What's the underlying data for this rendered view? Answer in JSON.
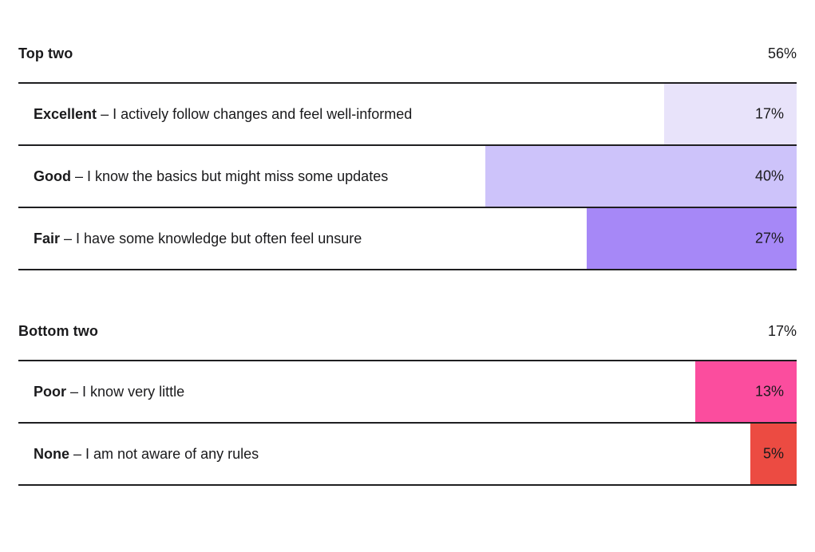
{
  "page": {
    "background": "#ffffff",
    "text_color": "#1a1a1c",
    "rule_color": "#1f1f21"
  },
  "chart_data": {
    "type": "bar",
    "orientation": "horizontal",
    "value_range": [
      0,
      100
    ],
    "grid": false,
    "legend": false,
    "value_labels_inside_bars": true,
    "sections": [
      {
        "title": "Top two",
        "total_label": "56%",
        "total_value": 56,
        "rows": [
          {
            "term": "Excellent",
            "description": "– I actively follow changes and feel well-informed",
            "value": 17,
            "value_label": "17%",
            "color": "#e8e3fa"
          },
          {
            "term": "Good",
            "description": "– I know the basics but might miss some updates",
            "value": 40,
            "value_label": "40%",
            "color": "#cdc3fa"
          },
          {
            "term": "Fair",
            "description": "– I have some knowledge but often feel unsure",
            "value": 27,
            "value_label": "27%",
            "color": "#a688f7"
          }
        ]
      },
      {
        "title": "Bottom two",
        "total_label": "17%",
        "total_value": 17,
        "rows": [
          {
            "term": "Poor",
            "description": "– I know very little",
            "value": 13,
            "value_label": "13%",
            "color": "#fb4d9e"
          },
          {
            "term": "None",
            "description": "– I am not aware of any rules",
            "value": 5,
            "value_label": "5%",
            "color": "#ec4b42"
          }
        ]
      }
    ]
  }
}
